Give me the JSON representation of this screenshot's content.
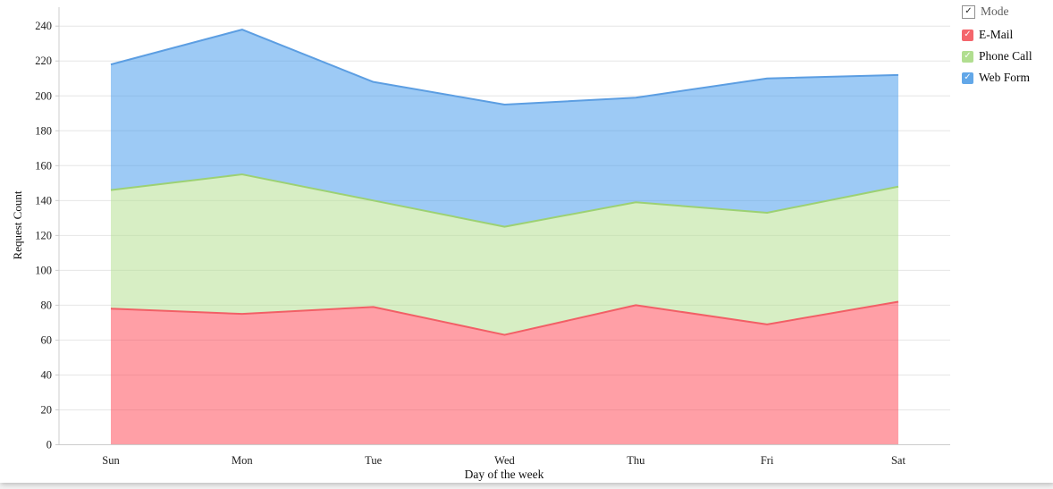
{
  "chart_data": {
    "type": "area",
    "stacked": true,
    "title": "",
    "xlabel": "Day of the week",
    "ylabel": "Request Count",
    "categories": [
      "Sun",
      "Mon",
      "Tue",
      "Wed",
      "Thu",
      "Fri",
      "Sat"
    ],
    "series": [
      {
        "name": "E-Mail",
        "values": [
          78,
          75,
          79,
          63,
          80,
          69,
          82
        ],
        "stacked_boundary": [
          78,
          75,
          79,
          63,
          80,
          69,
          82
        ],
        "fill": "rgba(255,63,77,0.5)",
        "stroke": "#f25f66",
        "legend_color": "#f4666c"
      },
      {
        "name": "Phone Call",
        "values": [
          68,
          80,
          61,
          62,
          59,
          64,
          66
        ],
        "stacked_boundary": [
          146,
          155,
          140,
          125,
          139,
          133,
          148
        ],
        "fill": "rgba(175,221,137,0.5)",
        "stroke": "#9cd173",
        "legend_color": "#b1de90"
      },
      {
        "name": "Web Form",
        "values": [
          72,
          83,
          68,
          70,
          60,
          77,
          64
        ],
        "stacked_boundary": [
          218,
          238,
          208,
          195,
          199,
          210,
          212
        ],
        "fill": "rgba(60,150,235,0.5)",
        "stroke": "#5c9ee2",
        "legend_color": "#62a7e8"
      }
    ],
    "yticks": [
      0,
      20,
      40,
      60,
      80,
      100,
      120,
      140,
      160,
      180,
      200,
      220,
      240
    ],
    "ylim": [
      0,
      251
    ],
    "grid": true,
    "gridline_color": "#e6e6e6",
    "axis_color": "#cccccc",
    "legend_position": "top-right"
  },
  "legend": {
    "master": {
      "label": "Mode",
      "checked": true,
      "check_glyph": "✓"
    },
    "items_checked": [
      true,
      true,
      true
    ]
  }
}
